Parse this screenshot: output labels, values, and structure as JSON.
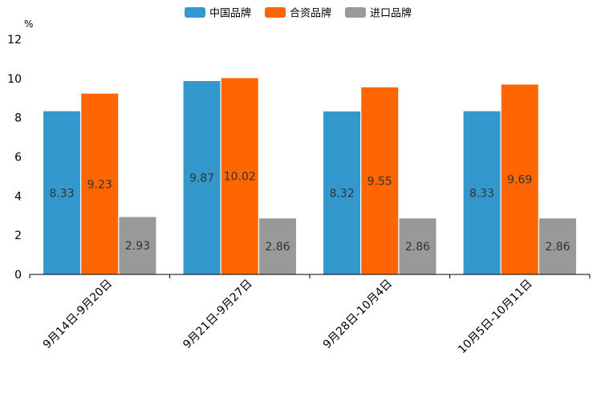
{
  "chart_data": {
    "type": "bar",
    "ylabel": "%",
    "ylim": [
      0,
      12
    ],
    "yticks": [
      0,
      2,
      4,
      6,
      8,
      10,
      12
    ],
    "categories": [
      "9月14日-9月20日",
      "9月21日-9月27日",
      "9月28日-10月4日",
      "10月5日-10月11日"
    ],
    "series": [
      {
        "name": "中国品牌",
        "color": "#3399CC",
        "values": [
          8.33,
          9.87,
          8.32,
          8.33
        ],
        "labels": [
          "8.33",
          "9.87",
          "8.32",
          "8.33"
        ]
      },
      {
        "name": "合资品牌",
        "color": "#FF6600",
        "values": [
          9.23,
          10.02,
          9.55,
          9.69
        ],
        "labels": [
          "9.23",
          "10.02",
          "9.55",
          "9.69"
        ]
      },
      {
        "name": "进口品牌",
        "color": "#999999",
        "values": [
          2.93,
          2.86,
          2.86,
          2.86
        ],
        "labels": [
          "2.93",
          "2.86",
          "2.86",
          "2.86"
        ]
      }
    ],
    "legend": "top-center",
    "grid": false
  }
}
